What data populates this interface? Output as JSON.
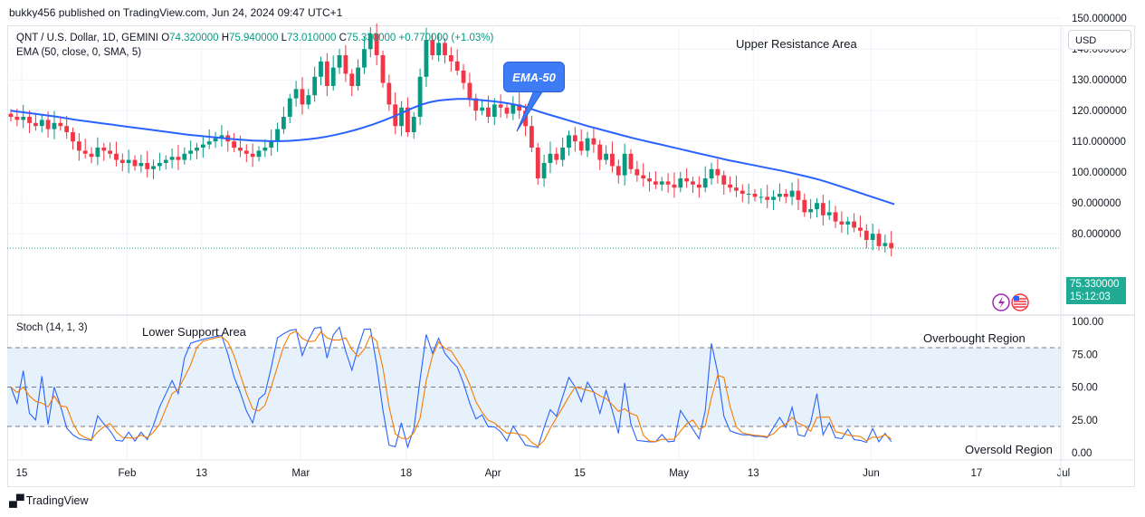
{
  "header": {
    "published_line": "bukky456 published on TradingView.com, Jun 24, 2024 09:47 UTC+1"
  },
  "legend": {
    "symbol": "QNT / U.S. Dollar, 1D, GEMINI",
    "o_label": "O",
    "o_value": "74.320000",
    "h_label": "H",
    "h_value": "75.940000",
    "l_label": "L",
    "l_value": "73.010000",
    "c_label": "C",
    "c_value": "75.330000",
    "change": "+0.770000 (+1.03%)",
    "ema": "EMA (50, close, 0, SMA, 5)",
    "stoch": "Stoch (14, 1, 3)"
  },
  "currency_button": "USD",
  "price_badge": {
    "price": "75.330000",
    "countdown": "15:12:03"
  },
  "annotations": {
    "upper_resistance": "Upper Resistance Area",
    "lower_support": "Lower Support Area",
    "overbought": "Overbought Region",
    "oversold": "Oversold Region",
    "ema_callout": "EMA-50"
  },
  "brand": {
    "name": "TradingView"
  },
  "colors": {
    "up": "#089981",
    "down": "#f23645",
    "ema": "#2962ff",
    "stoch_k": "#2962ff",
    "stoch_d": "#f57c00",
    "band": "#e3f0fc"
  },
  "chart_data": {
    "type": "candlestick",
    "price_axis": {
      "range": [
        73,
        148
      ],
      "ticks": [
        80,
        90,
        100,
        110,
        120,
        130,
        140,
        150
      ],
      "tick_labels": [
        "80.000000",
        "90.000000",
        "100.000000",
        "110.000000",
        "120.000000",
        "130.000000",
        "140.000000",
        "150.000000"
      ]
    },
    "stoch_axis": {
      "range": [
        0,
        100
      ],
      "ticks": [
        0,
        25,
        50,
        75,
        100
      ],
      "tick_labels": [
        "0.00",
        "25.00",
        "50.00",
        "75.00",
        "100.00"
      ],
      "overbought": 80,
      "oversold": 20,
      "band": [
        20,
        80
      ]
    },
    "time_axis": [
      {
        "day": 0,
        "label": "15"
      },
      {
        "day": 17,
        "label": "Feb"
      },
      {
        "day": 29,
        "label": "13"
      },
      {
        "day": 45,
        "label": "Mar"
      },
      {
        "day": 62,
        "label": "18"
      },
      {
        "day": 76,
        "label": "Apr"
      },
      {
        "day": 90,
        "label": "15"
      },
      {
        "day": 106,
        "label": "May"
      },
      {
        "day": 118,
        "label": "13"
      },
      {
        "day": 137,
        "label": "Jun"
      },
      {
        "day": 154,
        "label": "17"
      },
      {
        "day": 168,
        "label": "Jul"
      }
    ],
    "current_price": 75.33,
    "closes": [
      118,
      117,
      118,
      116,
      115,
      117,
      114,
      116,
      115,
      113,
      110,
      107,
      106,
      105,
      108,
      107,
      106,
      104,
      103,
      104,
      102,
      103,
      101,
      102,
      103,
      104,
      105,
      104,
      106,
      107,
      108,
      109,
      110,
      111,
      112,
      110,
      108,
      107,
      106,
      105,
      107,
      108,
      110,
      114,
      118,
      124,
      127,
      122,
      125,
      131,
      136,
      128,
      134,
      138,
      132,
      128,
      134,
      140,
      145,
      138,
      129,
      122,
      115,
      121,
      113,
      118,
      131,
      143,
      138,
      142,
      138,
      136,
      133,
      129,
      124,
      120,
      121,
      118,
      122,
      121,
      119,
      122,
      120,
      115,
      108,
      98,
      103,
      106,
      104,
      108,
      112,
      110,
      107,
      111,
      109,
      104,
      106,
      102,
      99,
      106,
      101,
      99,
      98,
      97,
      96,
      97,
      96,
      95,
      98,
      97,
      96,
      95,
      98,
      101,
      99,
      96,
      95,
      94,
      93,
      93,
      92,
      92,
      91,
      92,
      93,
      92,
      94,
      91,
      87,
      88,
      90,
      86,
      87,
      84,
      83,
      84,
      82,
      81,
      78,
      80,
      76,
      77,
      75.33
    ],
    "ema": [
      120,
      119.6,
      119.2,
      118.8,
      118.4,
      118,
      117.5,
      117,
      116.6,
      116.2,
      115.8,
      115.4,
      115,
      114.6,
      114.2,
      113.8,
      113.4,
      113,
      112.6,
      112.2,
      111.9,
      111.6,
      111.3,
      111,
      110.7,
      110.5,
      110.3,
      110.2,
      110.1,
      110.1,
      110.2,
      110.4,
      110.7,
      111.1,
      111.6,
      112.2,
      112.9,
      113.7,
      114.6,
      115.6,
      116.7,
      117.9,
      119.2,
      120.6,
      121.8,
      122.7,
      123.3,
      123.6,
      123.8,
      123.8,
      123.6,
      123.3,
      123,
      122.6,
      122.1,
      121.4,
      120.5,
      119.5,
      118.6,
      117.7,
      116.8,
      115.9,
      115,
      114.2,
      113.4,
      112.6,
      111.8,
      111,
      110.3,
      109.6,
      108.9,
      108.2,
      107.5,
      106.8,
      106.1,
      105.4,
      104.7,
      104,
      103.4,
      102.8,
      102.2,
      101.6,
      101,
      100.4,
      99.7,
      99,
      98.3,
      97.5,
      96.6,
      95.6,
      94.6,
      93.6,
      92.6,
      91.6,
      90.6,
      89.6
    ]
  }
}
